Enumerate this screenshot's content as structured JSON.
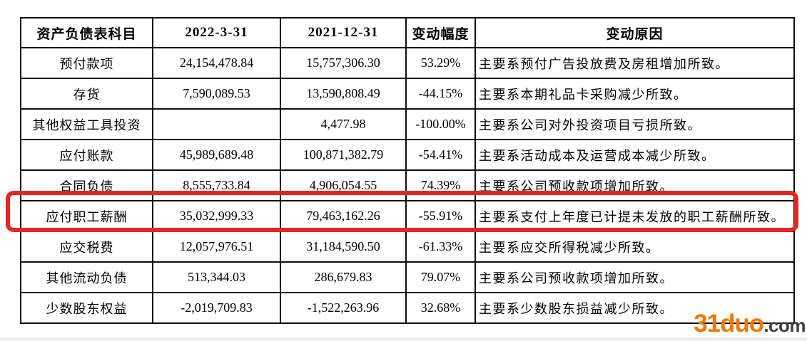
{
  "table": {
    "headers": [
      "资产负债表科目",
      "2022-3-31",
      "2021-12-31",
      "变动幅度",
      "变动原因"
    ],
    "rows": [
      {
        "item": "预付款项",
        "v2022": "24,154,478.84",
        "v2021": "15,757,306.30",
        "change": "53.29%",
        "reason": "主要系预付广告投放费及房租增加所致。"
      },
      {
        "item": "存货",
        "v2022": "7,590,089.53",
        "v2021": "13,590,808.49",
        "change": "-44.15%",
        "reason": "主要系本期礼品卡采购减少所致。"
      },
      {
        "item": "其他权益工具投资",
        "v2022": "",
        "v2021": "4,477.98",
        "change": "-100.00%",
        "reason": "主要系公司对外投资项目亏损所致。"
      },
      {
        "item": "应付账款",
        "v2022": "45,989,689.48",
        "v2021": "100,871,382.79",
        "change": "-54.41%",
        "reason": "主要系活动成本及运营成本减少所致。"
      },
      {
        "item": "合同负债",
        "v2022": "8,555,733.84",
        "v2021": "4,906,054.55",
        "change": "74.39%",
        "reason": "主要系公司预收款项增加所致。"
      },
      {
        "item": "应付职工薪酬",
        "v2022": "35,032,999.33",
        "v2021": "79,463,162.26",
        "change": "-55.91%",
        "reason": "主要系支付上年度已计提未发放的职工薪酬所致。"
      },
      {
        "item": "应交税费",
        "v2022": "12,057,976.51",
        "v2021": "31,184,590.50",
        "change": "-61.33%",
        "reason": "主要系应交所得税减少所致。"
      },
      {
        "item": "其他流动负债",
        "v2022": "513,344.03",
        "v2021": "286,679.83",
        "change": "79.07%",
        "reason": "主要系公司预收款项增加所致。"
      },
      {
        "item": "少数股东权益",
        "v2022": "-2,019,709.83",
        "v2021": "-1,522,263.96",
        "change": "32.68%",
        "reason": "主要系少数股东损益减少所致。"
      }
    ]
  },
  "highlight": {
    "highlighted_item": "应付职工薪酬",
    "row_index": 5,
    "box_color": "#e8251e"
  },
  "watermark": {
    "name": "31duo",
    "tld": ".com",
    "name_color": "#f07800",
    "tld_color": "#3f3f3f"
  }
}
